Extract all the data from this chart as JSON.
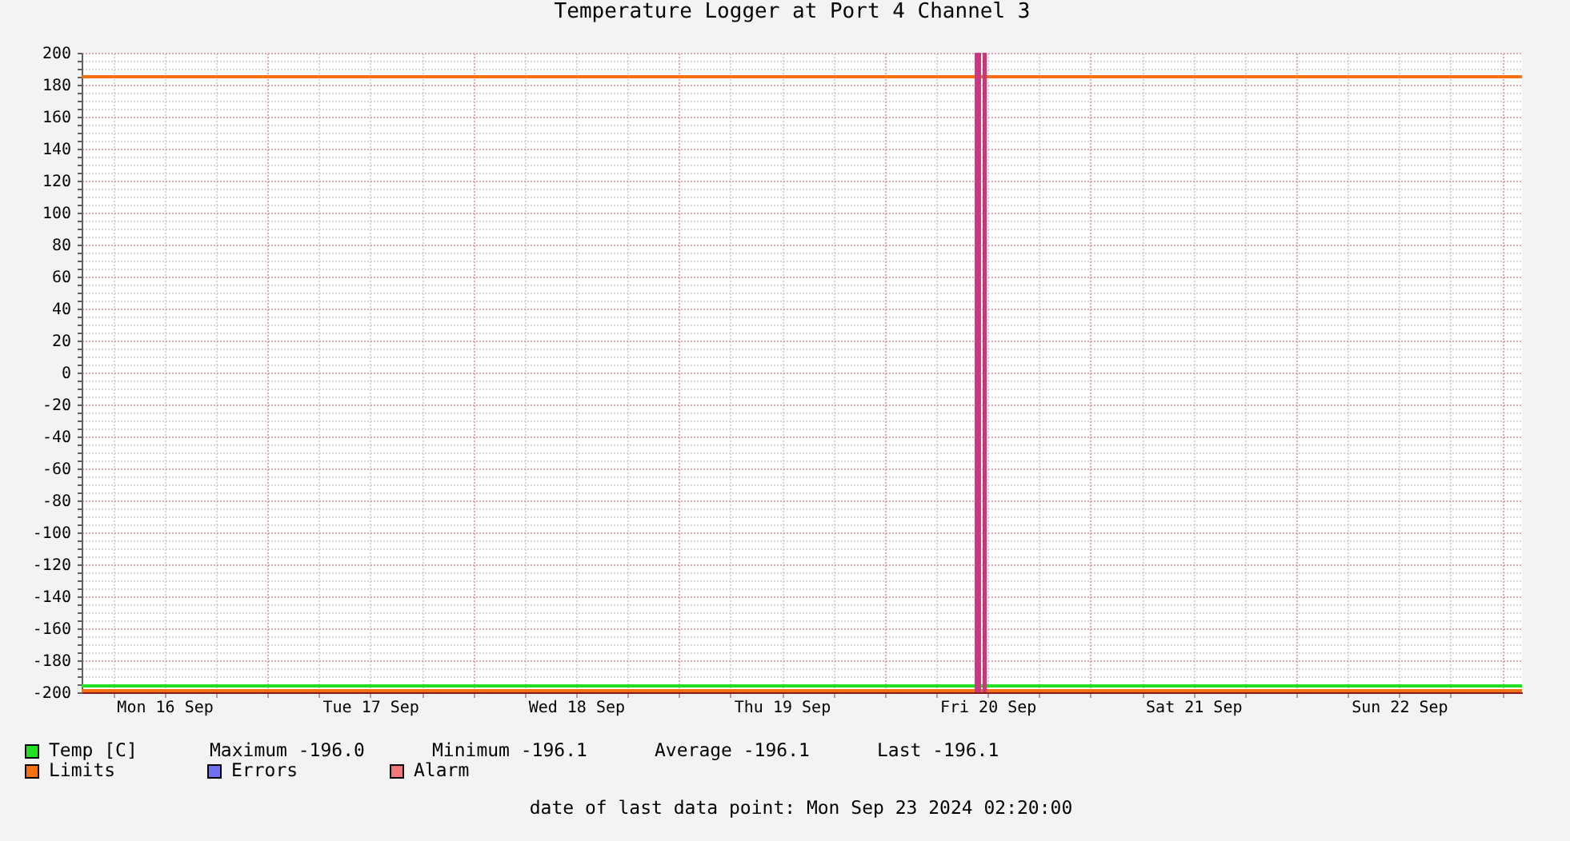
{
  "chart_data": {
    "type": "line",
    "title": "Temperature Logger at Port 4 Channel 3",
    "x": [
      "2024-09-16T02:20",
      "2024-09-23T02:20"
    ],
    "series": [
      {
        "name": "Temp [C]",
        "color": "#22e022",
        "values": [
          -196,
          -196
        ]
      },
      {
        "name": "Limits",
        "color": "#f5700f",
        "values": [
          185,
          185
        ]
      },
      {
        "color": "#f5700f",
        "values": [
          -199,
          -199
        ]
      },
      {
        "name": "Errors",
        "color": "#7070f0",
        "values": [
          null,
          null
        ]
      },
      {
        "name": "Alarm",
        "color": "#f07878",
        "values": [
          null,
          null
        ]
      }
    ],
    "xlim": [
      "2024-09-16T02:20",
      "2024-09-23T02:20"
    ],
    "xticks": [
      {
        "value": "2024-09-16T06:00",
        "label": null
      },
      {
        "value": "2024-09-16T12:00",
        "label": "Mon 16 Sep"
      },
      {
        "value": "2024-09-16T18:00",
        "label": null
      },
      {
        "value": "2024-09-17T00:00",
        "label": null
      },
      {
        "value": "2024-09-17T06:00",
        "label": null
      },
      {
        "value": "2024-09-17T12:00",
        "label": "Tue 17 Sep"
      },
      {
        "value": "2024-09-17T18:00",
        "label": null
      },
      {
        "value": "2024-09-18T00:00",
        "label": null
      },
      {
        "value": "2024-09-18T06:00",
        "label": null
      },
      {
        "value": "2024-09-18T12:00",
        "label": "Wed 18 Sep"
      },
      {
        "value": "2024-09-18T18:00",
        "label": null
      },
      {
        "value": "2024-09-19T00:00",
        "label": null
      },
      {
        "value": "2024-09-19T06:00",
        "label": null
      },
      {
        "value": "2024-09-19T12:00",
        "label": "Thu 19 Sep"
      },
      {
        "value": "2024-09-19T18:00",
        "label": null
      },
      {
        "value": "2024-09-20T00:00",
        "label": null
      },
      {
        "value": "2024-09-20T06:00",
        "label": null
      },
      {
        "value": "2024-09-20T12:00",
        "label": "Fri 20 Sep"
      },
      {
        "value": "2024-09-20T18:00",
        "label": null
      },
      {
        "value": "2024-09-21T00:00",
        "label": null
      },
      {
        "value": "2024-09-21T06:00",
        "label": null
      },
      {
        "value": "2024-09-21T12:00",
        "label": "Sat 21 Sep"
      },
      {
        "value": "2024-09-21T18:00",
        "label": null
      },
      {
        "value": "2024-09-22T00:00",
        "label": null
      },
      {
        "value": "2024-09-22T06:00",
        "label": null
      },
      {
        "value": "2024-09-22T12:00",
        "label": "Sun 22 Sep"
      },
      {
        "value": "2024-09-22T18:00",
        "label": null
      },
      {
        "value": "2024-09-23T00:00",
        "label": null
      }
    ],
    "ylim": [
      -200,
      200
    ],
    "yticks": [
      -200,
      {
        "value": -195,
        "label": null
      },
      {
        "value": -190,
        "label": null
      },
      {
        "value": -185,
        "label": null
      },
      -180,
      {
        "value": -175,
        "label": null
      },
      {
        "value": -170,
        "label": null
      },
      {
        "value": -165,
        "label": null
      },
      -160,
      {
        "value": -155,
        "label": null
      },
      {
        "value": -150,
        "label": null
      },
      {
        "value": -145,
        "label": null
      },
      -140,
      {
        "value": -135,
        "label": null
      },
      {
        "value": -130,
        "label": null
      },
      {
        "value": -125,
        "label": null
      },
      -120,
      {
        "value": -115,
        "label": null
      },
      {
        "value": -110,
        "label": null
      },
      {
        "value": -105,
        "label": null
      },
      -100,
      {
        "value": -95,
        "label": null
      },
      {
        "value": -90,
        "label": null
      },
      {
        "value": -85,
        "label": null
      },
      -80,
      {
        "value": -75,
        "label": null
      },
      {
        "value": -70,
        "label": null
      },
      {
        "value": -65,
        "label": null
      },
      -60,
      {
        "value": -55,
        "label": null
      },
      {
        "value": -50,
        "label": null
      },
      {
        "value": -45,
        "label": null
      },
      -40,
      {
        "value": -35,
        "label": null
      },
      {
        "value": -30,
        "label": null
      },
      {
        "value": -25,
        "label": null
      },
      -20,
      {
        "value": -15,
        "label": null
      },
      {
        "value": -10,
        "label": null
      },
      {
        "value": -5,
        "label": null
      },
      0,
      {
        "value": 5,
        "label": null
      },
      {
        "value": 10,
        "label": null
      },
      {
        "value": 15,
        "label": null
      },
      20,
      {
        "value": 25,
        "label": null
      },
      {
        "value": 30,
        "label": null
      },
      {
        "value": 35,
        "label": null
      },
      40,
      {
        "value": 45,
        "label": null
      },
      {
        "value": 50,
        "label": null
      },
      {
        "value": 55,
        "label": null
      },
      60,
      {
        "value": 65,
        "label": null
      },
      {
        "value": 70,
        "label": null
      },
      {
        "value": 75,
        "label": null
      },
      80,
      {
        "value": 85,
        "label": null
      },
      {
        "value": 90,
        "label": null
      },
      {
        "value": 95,
        "label": null
      },
      100,
      {
        "value": 105,
        "label": null
      },
      {
        "value": 110,
        "label": null
      },
      {
        "value": 115,
        "label": null
      },
      120,
      {
        "value": 125,
        "label": null
      },
      {
        "value": 130,
        "label": null
      },
      {
        "value": 135,
        "label": null
      },
      140,
      {
        "value": 145,
        "label": null
      },
      {
        "value": 150,
        "label": null
      },
      {
        "value": 155,
        "label": null
      },
      160,
      {
        "value": 165,
        "label": null
      },
      {
        "value": 170,
        "label": null
      },
      {
        "value": 175,
        "label": null
      },
      180,
      {
        "value": 185,
        "label": null
      },
      {
        "value": 190,
        "label": null
      },
      {
        "value": 195,
        "label": null
      },
      200
    ],
    "grid": true,
    "legend": "bottom",
    "bands": [
      {
        "axis": "x",
        "from": "2024-09-20T10:30",
        "to": "2024-09-20T11:15",
        "color": "#c43a7c"
      },
      {
        "axis": "x",
        "from": "2024-09-20T11:25",
        "to": "2024-09-20T11:55",
        "color": "#c43a7c"
      }
    ],
    "annotations": [
      "Maximum -196.0",
      "Minimum -196.1",
      "Average -196.1",
      "Last -196.1",
      "date of last data point: Mon Sep 23 2024 02:20:00"
    ]
  }
}
